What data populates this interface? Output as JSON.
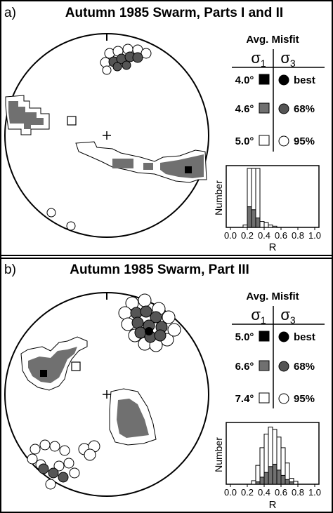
{
  "panels": [
    {
      "id": "a",
      "label": "a)",
      "title": "Autumn 1985 Swarm, Parts I and II",
      "legend_title": "Avg. Misfit",
      "sigma1": "σ",
      "sigma1_sub": "1",
      "sigma3": "σ",
      "sigma3_sub": "3",
      "rows": [
        {
          "misfit": "4.0°",
          "level": "best",
          "fill": "#000000"
        },
        {
          "misfit": "4.6°",
          "level": "68%",
          "fill": "#707070"
        },
        {
          "misfit": "5.0°",
          "level": "95%",
          "fill": "#ffffff"
        }
      ],
      "histogram": {
        "ylabel": "Number",
        "xlabel": "R",
        "ticks": [
          "0.0",
          "0.2",
          "0.4",
          "0.6",
          "0.8",
          "1.0"
        ],
        "bin_width": 0.05,
        "outer": [
          0,
          0,
          0,
          0.04,
          1.0,
          1.0,
          1.0,
          0.1,
          0.08,
          0.04,
          0.02,
          0,
          0,
          0,
          0,
          0,
          0,
          0,
          0,
          0
        ],
        "inner": [
          0,
          0,
          0,
          0,
          0.35,
          0.3,
          0.16,
          0,
          0,
          0,
          0,
          0,
          0,
          0,
          0,
          0,
          0,
          0,
          0,
          0
        ]
      }
    },
    {
      "id": "b",
      "label": "b)",
      "title": "Autumn 1985 Swarm, Part III",
      "legend_title": "Avg. Misfit",
      "sigma1": "σ",
      "sigma1_sub": "1",
      "sigma3": "σ",
      "sigma3_sub": "3",
      "rows": [
        {
          "misfit": "5.0°",
          "level": "best",
          "fill": "#000000"
        },
        {
          "misfit": "6.6°",
          "level": "68%",
          "fill": "#707070"
        },
        {
          "misfit": "7.4°",
          "level": "95%",
          "fill": "#ffffff"
        }
      ],
      "histogram": {
        "ylabel": "Number",
        "xlabel": "R",
        "ticks": [
          "0.0",
          "0.2",
          "0.4",
          "0.6",
          "0.8",
          "1.0"
        ],
        "bin_width": 0.05,
        "outer": [
          0,
          0,
          0,
          0,
          0,
          0.06,
          0.32,
          0.62,
          0.85,
          0.97,
          0.93,
          0.8,
          0.62,
          0.36,
          0.1,
          0.05,
          0,
          0,
          0,
          0
        ],
        "inner": [
          0,
          0,
          0,
          0,
          0,
          0,
          0.04,
          0.12,
          0.2,
          0.3,
          0.34,
          0.24,
          0.15,
          0.08,
          0.04,
          0,
          0,
          0,
          0,
          0
        ]
      }
    }
  ]
}
